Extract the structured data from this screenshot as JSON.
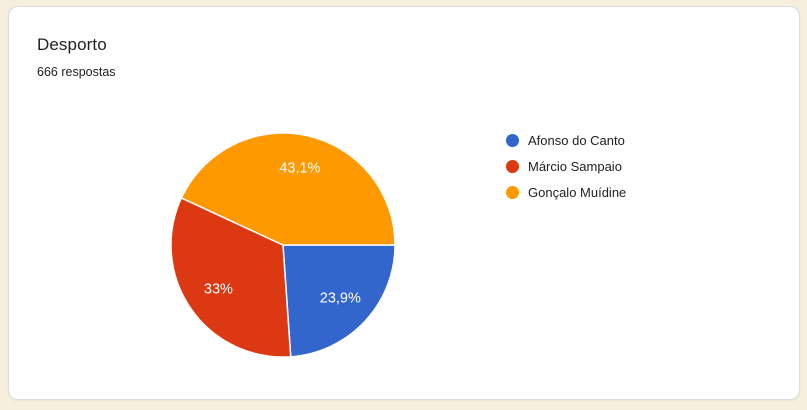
{
  "card": {
    "title": "Desporto",
    "responses_label": "666 respostas"
  },
  "chart_data": {
    "type": "pie",
    "title": "Desporto",
    "subtitle": "666 respostas",
    "legend_position": "right",
    "start_angle_deg": 90,
    "direction": "clockwise",
    "categories": [
      "Afonso do Canto",
      "Márcio Sampaio",
      "Gonçalo Muídine"
    ],
    "values": [
      23.9,
      33,
      43.1
    ],
    "slices": [
      {
        "label": "Afonso do Canto",
        "percent": 23.9,
        "percent_label": "23,9%",
        "color": "#3366cc"
      },
      {
        "label": "Márcio Sampaio",
        "percent": 33,
        "percent_label": "33%",
        "color": "#dc3912"
      },
      {
        "label": "Gonçalo Muídine",
        "percent": 43.1,
        "percent_label": "43,1%",
        "color": "#ff9900"
      }
    ]
  },
  "colors": {
    "page_background": "#f7efdd",
    "card_background": "#ffffff",
    "card_border": "#dadce0",
    "text": "#202124",
    "slice_label_text": "#ffffff"
  }
}
